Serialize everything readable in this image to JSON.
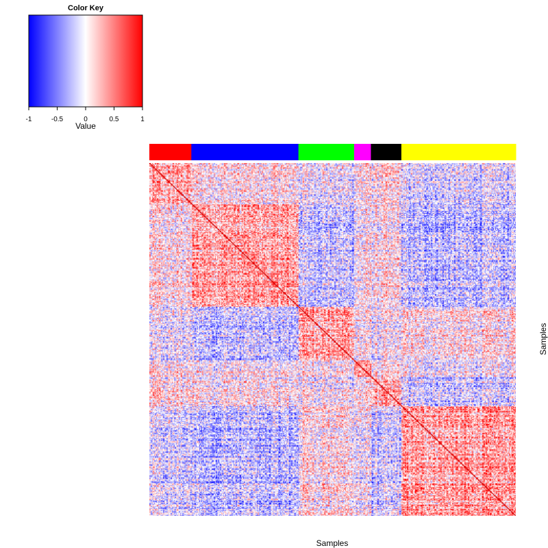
{
  "chart_data": {
    "type": "heatmap",
    "title": "",
    "xlabel": "Samples",
    "ylabel": "Samples",
    "matrix_kind": "sample-sample correlation (symmetric, diagonal = 1)",
    "groups": [
      {
        "name": "red",
        "color": "#ff0000",
        "size": 40
      },
      {
        "name": "blue",
        "color": "#0000ff",
        "size": 102
      },
      {
        "name": "green",
        "color": "#00ff00",
        "size": 53
      },
      {
        "name": "magenta",
        "color": "#ff00ff",
        "size": 16
      },
      {
        "name": "black",
        "color": "#000000",
        "size": 29
      },
      {
        "name": "yellow",
        "color": "#ffff00",
        "size": 109
      }
    ],
    "block_means": [
      [
        0.3,
        0.08,
        -0.05,
        0.05,
        0.1,
        -0.15
      ],
      [
        0.08,
        0.35,
        -0.2,
        0.0,
        0.05,
        -0.25
      ],
      [
        -0.05,
        -0.2,
        0.4,
        0.05,
        0.0,
        0.1
      ],
      [
        0.05,
        0.0,
        0.05,
        0.3,
        0.05,
        -0.05
      ],
      [
        0.1,
        0.05,
        0.0,
        0.05,
        0.3,
        -0.2
      ],
      [
        -0.15,
        -0.25,
        0.1,
        -0.05,
        -0.2,
        0.35
      ]
    ],
    "diagonal_value": 1,
    "color_key": {
      "title": "Color Key",
      "xlabel": "Value",
      "range": [
        -1,
        1
      ],
      "ticks": [
        "-1",
        "-0.5",
        "0",
        "0.5",
        "1"
      ],
      "tick_values": [
        -1,
        -0.5,
        0,
        0.5,
        1
      ],
      "low_color": "#0000ff",
      "mid_color": "#ffffff",
      "high_color": "#ff0000"
    }
  }
}
